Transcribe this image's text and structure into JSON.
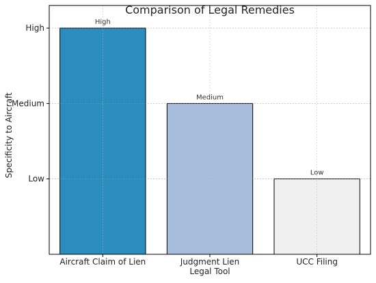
{
  "chart_data": {
    "type": "bar",
    "title": "Comparison of Legal Remedies",
    "xlabel": "Legal Tool",
    "ylabel": "Specificity to Aircraft",
    "categories": [
      "Aircraft Claim of Lien",
      "Judgment Lien",
      "UCC Filing"
    ],
    "values": [
      3,
      2,
      1
    ],
    "data_labels": [
      "High",
      "Medium",
      "Low"
    ],
    "yticks": [
      1,
      2,
      3
    ],
    "ytick_labels": [
      "Low",
      "Medium",
      "High"
    ],
    "ylim": [
      0,
      3.3
    ],
    "grid": true,
    "bar_colors": [
      "#2b8cbe",
      "#a6bddb",
      "#f0f0f0"
    ],
    "edge_color": "#000000"
  }
}
